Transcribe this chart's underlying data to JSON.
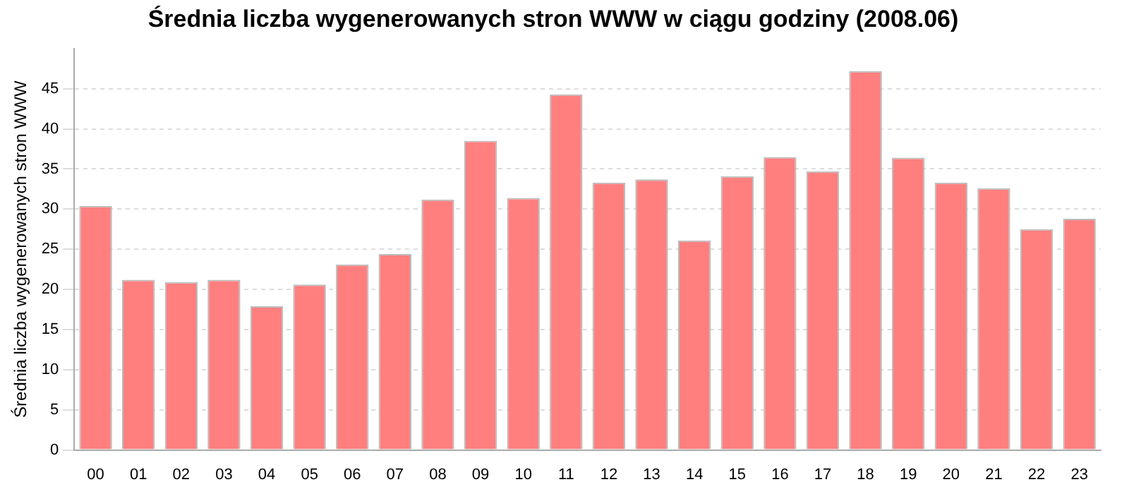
{
  "chart_data": {
    "type": "bar",
    "title": "Średnia liczba wygenerowanych stron WWW w ciągu godziny (2008.06)",
    "ylabel": "Średnia liczba wygenerowanych stron WWW",
    "categories": [
      "00",
      "01",
      "02",
      "03",
      "04",
      "05",
      "06",
      "07",
      "08",
      "09",
      "10",
      "11",
      "12",
      "13",
      "14",
      "15",
      "16",
      "17",
      "18",
      "19",
      "20",
      "21",
      "22",
      "23"
    ],
    "values": [
      30.4,
      21.2,
      20.9,
      21.2,
      17.9,
      20.6,
      23.1,
      24.4,
      31.2,
      38.5,
      31.4,
      44.3,
      33.3,
      33.7,
      26.1,
      34.1,
      36.5,
      34.7,
      47.2,
      36.4,
      33.3,
      32.6,
      27.5,
      28.8
    ],
    "color": "#ff7f7f",
    "ylim": [
      0,
      50
    ],
    "yticks": [
      0,
      5,
      10,
      15,
      20,
      25,
      30,
      35,
      40,
      45
    ],
    "grid": "y",
    "legend": false
  }
}
